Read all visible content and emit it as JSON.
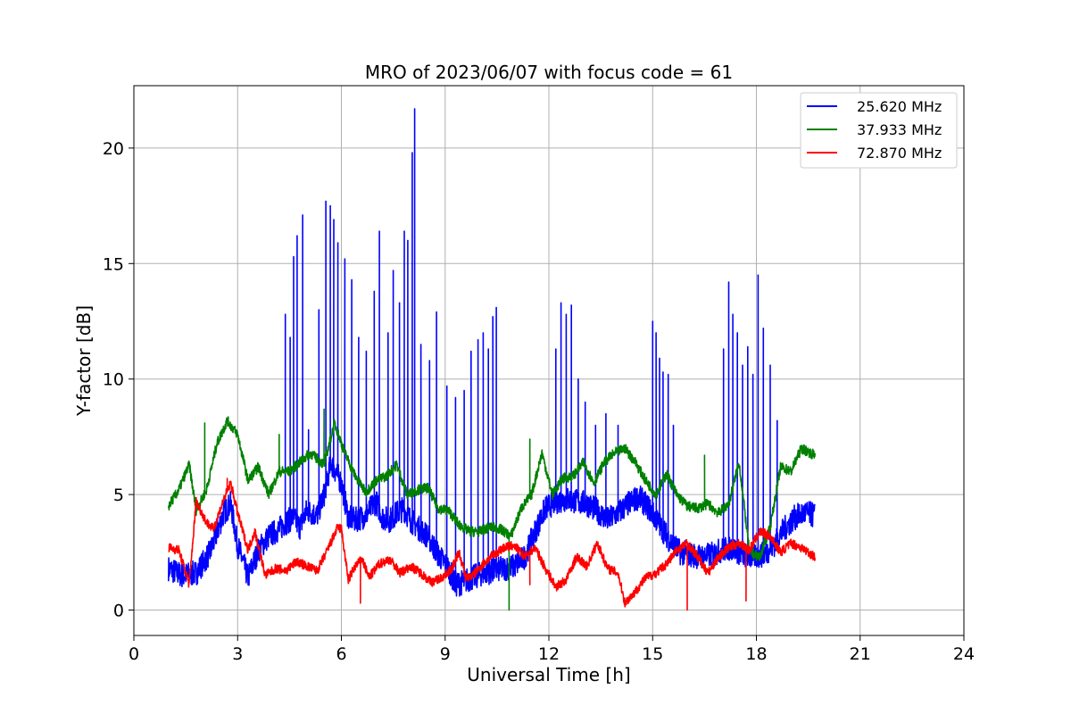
{
  "chart_data": {
    "type": "line",
    "title": "MRO of 2023/06/07 with focus code = 61",
    "xlabel": "Universal Time [h]",
    "ylabel": "Y-factor [dB]",
    "xlim": [
      0,
      24
    ],
    "ylim": [
      -1.1,
      22.7
    ],
    "xticks": [
      0,
      3,
      6,
      9,
      12,
      15,
      18,
      21,
      24
    ],
    "yticks": [
      0,
      5,
      10,
      15,
      20
    ],
    "grid": true,
    "legend_position": "top-right",
    "series": [
      {
        "name": "25.620 MHz",
        "color": "#0000ff",
        "x": [
          1.0,
          1.4,
          1.8,
          2.2,
          2.6,
          2.8,
          3.0,
          3.3,
          3.6,
          3.9,
          4.2,
          4.4,
          4.6,
          4.8,
          5.0,
          5.3,
          5.5,
          5.7,
          6.0,
          6.2,
          6.4,
          6.7,
          7.0,
          7.2,
          7.4,
          7.6,
          7.8,
          8.0,
          8.2,
          8.5,
          8.8,
          9.1,
          9.3,
          9.5,
          9.8,
          10.1,
          10.4,
          10.7,
          11.0,
          11.3,
          11.6,
          11.9,
          12.2,
          12.5,
          12.8,
          13.1,
          13.4,
          13.7,
          14.0,
          14.3,
          14.6,
          14.9,
          15.2,
          15.5,
          15.8,
          16.1,
          16.4,
          16.7,
          17.0,
          17.3,
          17.6,
          17.9,
          18.2,
          18.5,
          18.8,
          19.1,
          19.4,
          19.7
        ],
        "y": [
          1.8,
          1.5,
          1.6,
          2.5,
          4.2,
          4.6,
          2.8,
          1.4,
          2.6,
          3.2,
          3.5,
          3.8,
          4.0,
          3.6,
          4.3,
          4.1,
          5.0,
          6.4,
          5.5,
          4.0,
          3.9,
          4.1,
          4.7,
          4.0,
          3.9,
          4.2,
          4.4,
          3.9,
          3.6,
          3.2,
          2.4,
          1.8,
          1.1,
          1.2,
          1.4,
          1.6,
          1.7,
          1.8,
          1.9,
          2.3,
          3.4,
          4.4,
          4.7,
          4.8,
          4.7,
          4.6,
          4.3,
          3.9,
          4.2,
          4.6,
          4.9,
          4.4,
          3.7,
          3.0,
          2.5,
          2.4,
          2.3,
          2.4,
          2.6,
          2.7,
          2.4,
          2.3,
          2.4,
          2.8,
          3.5,
          4.0,
          4.2,
          4.1
        ],
        "spikes": [
          {
            "x": 4.38,
            "y": 12.8
          },
          {
            "x": 4.52,
            "y": 11.8
          },
          {
            "x": 4.62,
            "y": 15.3
          },
          {
            "x": 4.72,
            "y": 16.2
          },
          {
            "x": 4.88,
            "y": 17.1
          },
          {
            "x": 5.05,
            "y": 7.8
          },
          {
            "x": 5.35,
            "y": 13.0
          },
          {
            "x": 5.55,
            "y": 17.7
          },
          {
            "x": 5.68,
            "y": 17.5
          },
          {
            "x": 5.78,
            "y": 16.9
          },
          {
            "x": 5.9,
            "y": 15.9
          },
          {
            "x": 6.1,
            "y": 15.2
          },
          {
            "x": 6.3,
            "y": 14.3
          },
          {
            "x": 6.5,
            "y": 11.8
          },
          {
            "x": 6.72,
            "y": 11.2
          },
          {
            "x": 6.95,
            "y": 13.8
          },
          {
            "x": 7.1,
            "y": 16.4
          },
          {
            "x": 7.35,
            "y": 12.0
          },
          {
            "x": 7.5,
            "y": 14.7
          },
          {
            "x": 7.68,
            "y": 13.3
          },
          {
            "x": 7.82,
            "y": 16.4
          },
          {
            "x": 7.92,
            "y": 16.0
          },
          {
            "x": 8.05,
            "y": 19.8
          },
          {
            "x": 8.12,
            "y": 21.7
          },
          {
            "x": 8.3,
            "y": 11.5
          },
          {
            "x": 8.55,
            "y": 10.8
          },
          {
            "x": 8.75,
            "y": 12.9
          },
          {
            "x": 9.05,
            "y": 9.7
          },
          {
            "x": 9.3,
            "y": 9.2
          },
          {
            "x": 9.55,
            "y": 9.5
          },
          {
            "x": 9.75,
            "y": 11.2
          },
          {
            "x": 9.95,
            "y": 11.7
          },
          {
            "x": 10.1,
            "y": 12.0
          },
          {
            "x": 10.25,
            "y": 11.3
          },
          {
            "x": 10.38,
            "y": 12.7
          },
          {
            "x": 10.48,
            "y": 13.1
          },
          {
            "x": 12.2,
            "y": 11.3
          },
          {
            "x": 12.35,
            "y": 13.3
          },
          {
            "x": 12.5,
            "y": 12.8
          },
          {
            "x": 12.65,
            "y": 13.2
          },
          {
            "x": 12.85,
            "y": 10.0
          },
          {
            "x": 13.05,
            "y": 9.0
          },
          {
            "x": 13.35,
            "y": 8.0
          },
          {
            "x": 13.65,
            "y": 8.5
          },
          {
            "x": 14.0,
            "y": 8.0
          },
          {
            "x": 15.0,
            "y": 12.5
          },
          {
            "x": 15.1,
            "y": 12.0
          },
          {
            "x": 15.2,
            "y": 10.9
          },
          {
            "x": 15.3,
            "y": 10.3
          },
          {
            "x": 15.45,
            "y": 10.2
          },
          {
            "x": 15.6,
            "y": 8.0
          },
          {
            "x": 17.05,
            "y": 11.3
          },
          {
            "x": 17.2,
            "y": 14.2
          },
          {
            "x": 17.32,
            "y": 12.8
          },
          {
            "x": 17.45,
            "y": 12.0
          },
          {
            "x": 17.6,
            "y": 10.6
          },
          {
            "x": 17.75,
            "y": 11.4
          },
          {
            "x": 17.9,
            "y": 10.2
          },
          {
            "x": 18.05,
            "y": 14.5
          },
          {
            "x": 18.2,
            "y": 12.2
          },
          {
            "x": 18.4,
            "y": 10.6
          },
          {
            "x": 18.6,
            "y": 8.2
          }
        ]
      },
      {
        "name": "37.933 MHz",
        "color": "#008000",
        "x": [
          1.0,
          1.3,
          1.6,
          1.8,
          2.1,
          2.4,
          2.7,
          3.0,
          3.3,
          3.6,
          3.9,
          4.2,
          4.5,
          4.8,
          5.1,
          5.5,
          5.8,
          6.1,
          6.4,
          6.7,
          7.0,
          7.3,
          7.6,
          7.9,
          8.2,
          8.5,
          8.8,
          9.1,
          9.4,
          9.7,
          10.0,
          10.3,
          10.6,
          10.9,
          11.2,
          11.5,
          11.8,
          12.1,
          12.4,
          12.7,
          13.0,
          13.3,
          13.6,
          13.9,
          14.2,
          14.5,
          14.8,
          15.1,
          15.4,
          15.7,
          16.0,
          16.3,
          16.6,
          16.9,
          17.2,
          17.5,
          17.8,
          18.1,
          18.4,
          18.7,
          19.0,
          19.3,
          19.7
        ],
        "y": [
          4.5,
          5.2,
          6.3,
          4.3,
          5.2,
          7.2,
          8.2,
          7.6,
          5.6,
          6.2,
          5.0,
          6.0,
          6.0,
          6.4,
          6.8,
          6.3,
          8.1,
          6.8,
          5.8,
          5.1,
          5.6,
          5.8,
          6.3,
          5.0,
          5.2,
          5.3,
          4.4,
          4.3,
          3.7,
          3.4,
          3.4,
          3.6,
          3.5,
          3.2,
          4.4,
          5.0,
          6.8,
          5.0,
          5.7,
          5.8,
          6.4,
          5.5,
          6.4,
          6.8,
          7.0,
          6.4,
          5.6,
          5.0,
          5.9,
          5.0,
          4.5,
          4.4,
          4.6,
          4.2,
          4.6,
          6.4,
          2.5,
          2.3,
          3.6,
          6.2,
          6.0,
          7.0,
          6.7
        ],
        "spikes": [
          {
            "x": 2.05,
            "y": 8.1
          },
          {
            "x": 4.2,
            "y": 7.6
          },
          {
            "x": 5.5,
            "y": 8.7
          },
          {
            "x": 11.45,
            "y": 7.4
          },
          {
            "x": 10.85,
            "y": 0.0
          },
          {
            "x": 16.5,
            "y": 6.7
          }
        ]
      },
      {
        "name": "72.870 MHz",
        "color": "#ff0000",
        "x": [
          1.0,
          1.3,
          1.6,
          1.8,
          2.1,
          2.3,
          2.6,
          2.8,
          3.0,
          3.3,
          3.5,
          3.8,
          4.1,
          4.4,
          4.7,
          5.0,
          5.3,
          5.6,
          5.9,
          6.0,
          6.2,
          6.4,
          6.6,
          6.8,
          7.1,
          7.4,
          7.7,
          8.0,
          8.3,
          8.6,
          8.9,
          9.2,
          9.4,
          9.6,
          9.8,
          10.1,
          10.4,
          10.7,
          11.0,
          11.3,
          11.6,
          11.9,
          12.2,
          12.5,
          12.8,
          13.1,
          13.4,
          13.7,
          14.0,
          14.2,
          14.5,
          14.8,
          15.1,
          15.4,
          15.7,
          16.0,
          16.3,
          16.6,
          16.9,
          17.2,
          17.5,
          17.8,
          18.1,
          18.4,
          18.7,
          19.0,
          19.3,
          19.7
        ],
        "y": [
          2.7,
          2.6,
          1.1,
          4.7,
          3.8,
          3.5,
          4.8,
          5.5,
          4.2,
          2.6,
          3.4,
          1.5,
          1.8,
          1.7,
          2.1,
          1.9,
          1.7,
          2.6,
          3.6,
          3.5,
          1.3,
          1.9,
          2.2,
          1.4,
          2.0,
          2.2,
          1.6,
          1.9,
          1.6,
          1.2,
          1.4,
          1.8,
          2.5,
          1.4,
          1.5,
          2.0,
          2.4,
          2.7,
          2.8,
          2.3,
          2.7,
          1.8,
          1.0,
          1.3,
          2.3,
          1.9,
          2.9,
          1.8,
          1.6,
          0.3,
          0.8,
          1.4,
          1.6,
          2.0,
          2.6,
          2.9,
          2.3,
          1.6,
          2.3,
          2.7,
          2.9,
          2.6,
          3.4,
          3.2,
          2.5,
          2.9,
          2.7,
          2.3
        ],
        "spikes": [
          {
            "x": 2.7,
            "y": 5.7
          },
          {
            "x": 6.55,
            "y": 0.3
          },
          {
            "x": 16.0,
            "y": 0.0
          },
          {
            "x": 17.7,
            "y": 0.4
          },
          {
            "x": 11.45,
            "y": 1.1
          }
        ]
      }
    ]
  }
}
